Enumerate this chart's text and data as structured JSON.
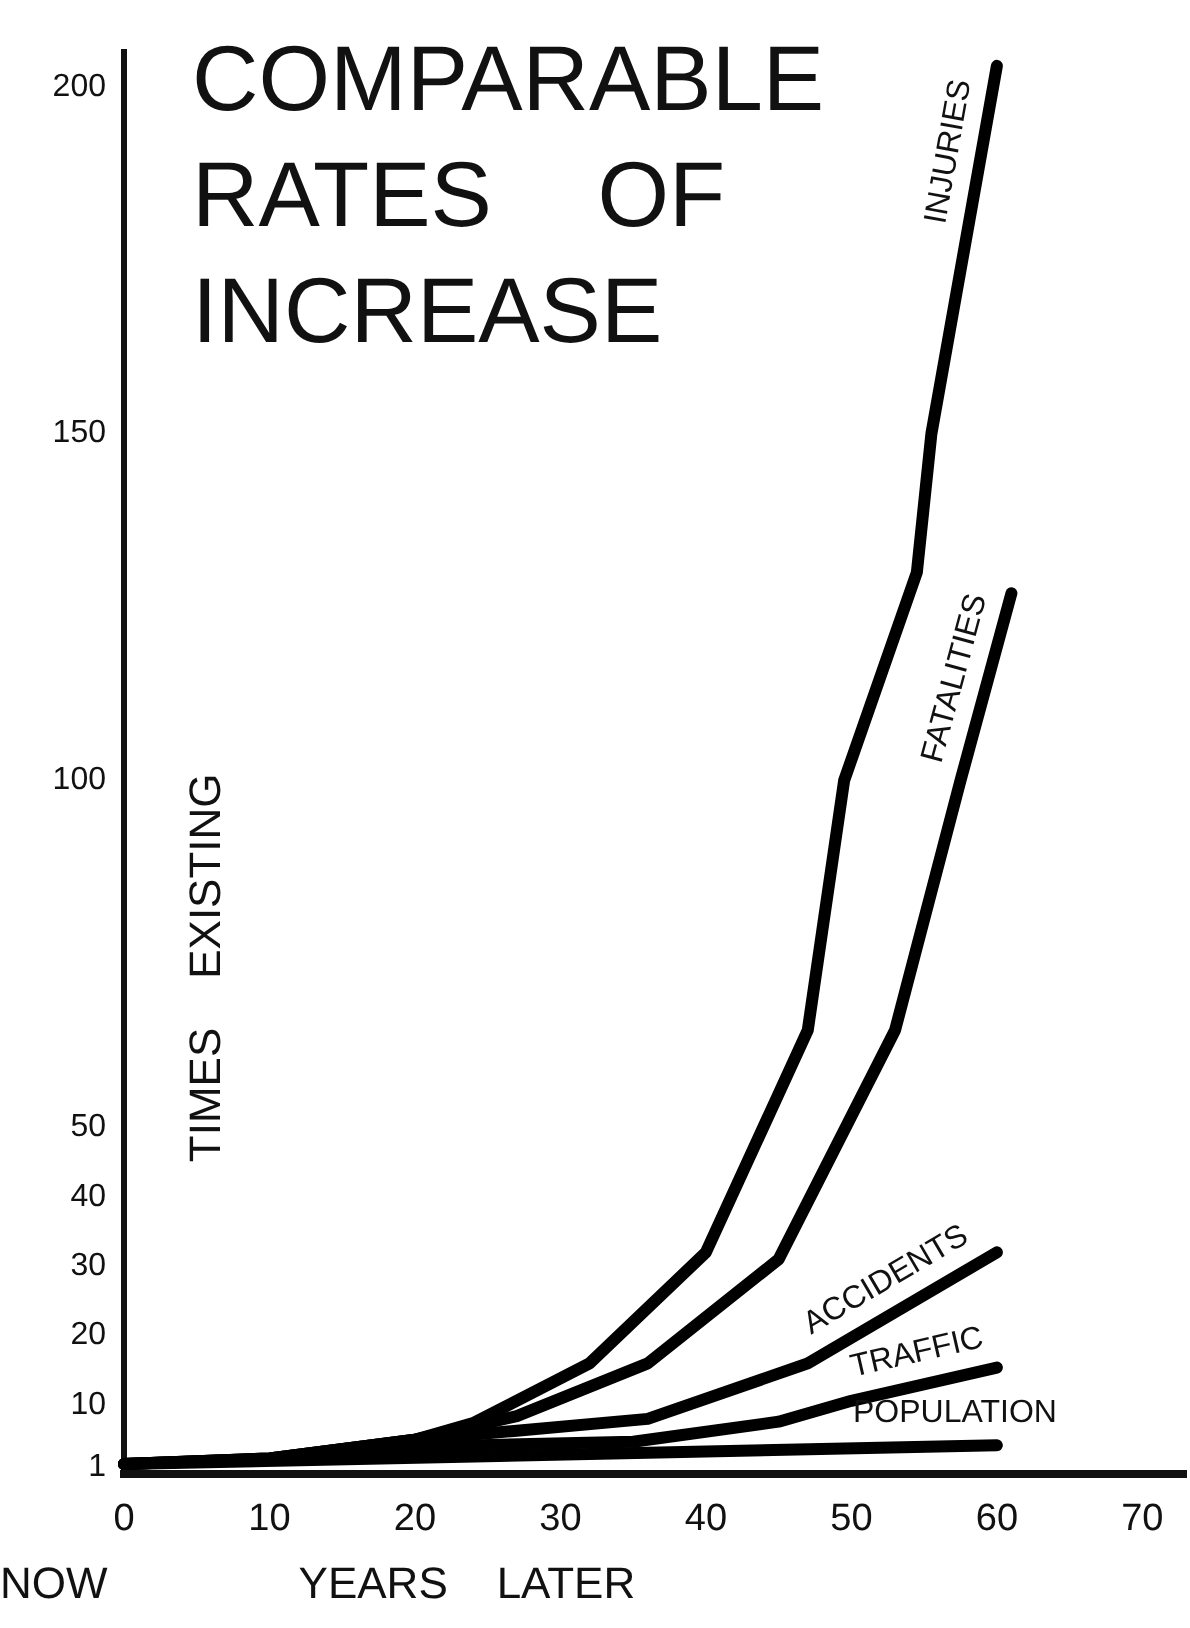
{
  "chart_data": {
    "type": "line",
    "title": "COMPARABLE RATES OF INCREASE",
    "xlabel": "YEARS LATER",
    "ylabel": "TIMES EXISTING",
    "annotations": [
      "NOW"
    ],
    "xlim": [
      0,
      73
    ],
    "xticks": [
      0,
      10,
      20,
      30,
      40,
      50,
      60,
      70
    ],
    "ylim": [
      0,
      205
    ],
    "yticks": [
      1,
      10,
      20,
      30,
      40,
      50,
      100,
      150,
      200
    ],
    "grid": false,
    "legend": false,
    "marker": "none",
    "line_style": "solid",
    "series": [
      {
        "name": "INJURIES",
        "color": "#000000",
        "x": [
          0,
          10,
          20,
          24,
          32,
          40,
          47,
          49.5,
          54.5,
          55.5,
          60
        ],
        "values": [
          1.5,
          2.3,
          5,
          7.4,
          16,
          32,
          64,
          100,
          130,
          150,
          203
        ]
      },
      {
        "name": "FATALITIES",
        "color": "#000000",
        "x": [
          0,
          10,
          20,
          27,
          36,
          45,
          53,
          57.5,
          61
        ],
        "values": [
          1.5,
          2.3,
          5,
          8.4,
          16,
          31,
          64,
          100,
          127
        ]
      },
      {
        "name": "ACCIDENTS",
        "color": "#000000",
        "x": [
          0,
          10,
          20,
          27,
          36,
          47,
          60
        ],
        "values": [
          1.5,
          2.3,
          5,
          6.3,
          8,
          16,
          32
        ]
      },
      {
        "name": "TRAFFIC",
        "color": "#000000",
        "x": [
          0,
          10,
          20,
          35,
          45,
          50,
          60
        ],
        "values": [
          1.5,
          2.2,
          4,
          4.7,
          7.6,
          10.6,
          15.4
        ]
      },
      {
        "name": "POPULATION",
        "color": "#000000",
        "x": [
          0,
          60
        ],
        "values": [
          1.5,
          4.2
        ]
      }
    ]
  }
}
